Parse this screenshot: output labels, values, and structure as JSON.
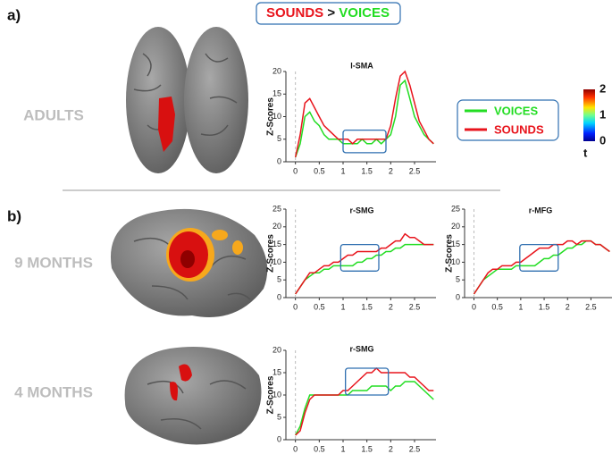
{
  "figure": {
    "panels": [
      "a)",
      "b)"
    ],
    "groups": [
      "ADULTS",
      "9 MONTHS",
      "4 MONTHS"
    ],
    "header": {
      "left": "SOUNDS",
      "sep": ">",
      "right": "VOICES"
    },
    "legend": [
      {
        "name": "VOICES",
        "color": "#22dd22"
      },
      {
        "name": "SOUNDS",
        "color": "#e8141c"
      }
    ],
    "colorbar": {
      "lim": [
        0,
        2
      ],
      "ticks": [
        0,
        1,
        2
      ],
      "label": "t"
    }
  },
  "chart_data": [
    {
      "type": "line",
      "title": "l-SMA",
      "ylabel": "Z-Scores",
      "x": [
        0,
        0.1,
        0.2,
        0.3,
        0.4,
        0.5,
        0.6,
        0.7,
        0.8,
        0.9,
        1,
        1.1,
        1.2,
        1.3,
        1.4,
        1.5,
        1.6,
        1.7,
        1.8,
        1.9,
        2,
        2.1,
        2.2,
        2.3,
        2.4,
        2.5,
        2.6,
        2.7,
        2.8,
        2.9
      ],
      "series": [
        {
          "color": "#22dd22",
          "values": [
            1,
            4,
            10,
            11,
            9,
            8,
            6,
            5,
            5,
            5,
            4,
            4,
            4,
            4,
            5,
            4,
            4,
            5,
            4,
            5,
            6,
            10,
            17,
            18,
            14,
            10,
            8,
            6,
            5,
            4
          ]
        },
        {
          "color": "#e8141c",
          "values": [
            1,
            6,
            13,
            14,
            12,
            10,
            8,
            7,
            6,
            5,
            5,
            5,
            4,
            5,
            5,
            5,
            5,
            5,
            5,
            5,
            8,
            14,
            19,
            20,
            17,
            13,
            9,
            7,
            5,
            4
          ]
        }
      ],
      "xlim": [
        -0.2,
        2.95
      ],
      "xticks": [
        0,
        0.5,
        1,
        1.5,
        2,
        2.5
      ],
      "ylim": [
        0,
        20
      ],
      "yticks": [
        0,
        5,
        10,
        15,
        20
      ],
      "highlight": {
        "x": [
          1.0,
          1.9
        ],
        "y": [
          2,
          7
        ]
      }
    },
    {
      "type": "line",
      "title": "r-SMG",
      "ylabel": "Z-Scores",
      "x": [
        0,
        0.1,
        0.2,
        0.3,
        0.4,
        0.5,
        0.6,
        0.7,
        0.8,
        0.9,
        1,
        1.1,
        1.2,
        1.3,
        1.4,
        1.5,
        1.6,
        1.7,
        1.8,
        1.9,
        2,
        2.1,
        2.2,
        2.3,
        2.4,
        2.5,
        2.6,
        2.7,
        2.8,
        2.9
      ],
      "series": [
        {
          "color": "#22dd22",
          "values": [
            1,
            3,
            5,
            6,
            7,
            7,
            8,
            8,
            9,
            9,
            9,
            9,
            9,
            10,
            10,
            11,
            11,
            12,
            12,
            13,
            13,
            14,
            14,
            15,
            15,
            15,
            15,
            15,
            15,
            15
          ]
        },
        {
          "color": "#e8141c",
          "values": [
            1,
            3,
            5,
            7,
            7,
            8,
            9,
            9,
            10,
            10,
            11,
            12,
            12,
            13,
            13,
            13,
            13,
            13,
            14,
            14,
            15,
            16,
            16,
            18,
            17,
            17,
            16,
            15,
            15,
            15
          ]
        }
      ],
      "xlim": [
        -0.2,
        2.95
      ],
      "xticks": [
        0,
        0.5,
        1,
        1.5,
        2,
        2.5
      ],
      "ylim": [
        0,
        25
      ],
      "yticks": [
        0,
        5,
        10,
        15,
        20,
        25
      ],
      "highlight": {
        "x": [
          0.95,
          1.75
        ],
        "y": [
          7.5,
          15
        ]
      }
    },
    {
      "type": "line",
      "title": "r-MFG",
      "ylabel": "Z-Scores",
      "x": [
        0,
        0.1,
        0.2,
        0.3,
        0.4,
        0.5,
        0.6,
        0.7,
        0.8,
        0.9,
        1,
        1.1,
        1.2,
        1.3,
        1.4,
        1.5,
        1.6,
        1.7,
        1.8,
        1.9,
        2,
        2.1,
        2.2,
        2.3,
        2.4,
        2.5,
        2.6,
        2.7,
        2.8,
        2.9
      ],
      "series": [
        {
          "color": "#22dd22",
          "values": [
            1,
            3,
            5,
            6,
            7,
            8,
            8,
            8,
            8,
            9,
            9,
            9,
            9,
            9,
            10,
            11,
            11,
            12,
            12,
            13,
            14,
            14,
            15,
            15,
            16,
            16,
            15,
            15,
            14,
            13
          ]
        },
        {
          "color": "#e8141c",
          "values": [
            1,
            3,
            5,
            7,
            8,
            8,
            9,
            9,
            9,
            10,
            10,
            11,
            12,
            13,
            14,
            14,
            14,
            15,
            15,
            15,
            16,
            16,
            15,
            16,
            16,
            16,
            15,
            15,
            14,
            13
          ]
        }
      ],
      "xlim": [
        -0.2,
        2.95
      ],
      "xticks": [
        0,
        0.5,
        1,
        1.5,
        2,
        2.5
      ],
      "ylim": [
        0,
        25
      ],
      "yticks": [
        0,
        5,
        10,
        15,
        20,
        25
      ],
      "highlight": {
        "x": [
          0.98,
          1.8
        ],
        "y": [
          7.5,
          15
        ]
      }
    },
    {
      "type": "line",
      "title": "r-SMG",
      "ylabel": "Z-Scores",
      "x": [
        0,
        0.1,
        0.2,
        0.3,
        0.4,
        0.5,
        0.6,
        0.7,
        0.8,
        0.9,
        1,
        1.1,
        1.2,
        1.3,
        1.4,
        1.5,
        1.6,
        1.7,
        1.8,
        1.9,
        2,
        2.1,
        2.2,
        2.3,
        2.4,
        2.5,
        2.6,
        2.7,
        2.8,
        2.9
      ],
      "series": [
        {
          "color": "#22dd22",
          "values": [
            1,
            3,
            7,
            10,
            10,
            10,
            10,
            10,
            10,
            10,
            10,
            10,
            11,
            11,
            11,
            11,
            12,
            12,
            12,
            12,
            11,
            12,
            12,
            13,
            13,
            13,
            12,
            11,
            10,
            9
          ]
        },
        {
          "color": "#e8141c",
          "values": [
            1,
            2,
            6,
            9,
            10,
            10,
            10,
            10,
            10,
            10,
            11,
            11,
            12,
            13,
            14,
            15,
            15,
            16,
            15,
            15,
            15,
            15,
            15,
            15,
            14,
            14,
            13,
            12,
            11,
            11
          ]
        }
      ],
      "xlim": [
        -0.2,
        2.95
      ],
      "xticks": [
        0,
        0.5,
        1,
        1.5,
        2,
        2.5
      ],
      "ylim": [
        0,
        20
      ],
      "yticks": [
        0,
        5,
        10,
        15,
        20
      ],
      "highlight": {
        "x": [
          1.05,
          1.95
        ],
        "y": [
          10,
          16
        ]
      }
    }
  ]
}
